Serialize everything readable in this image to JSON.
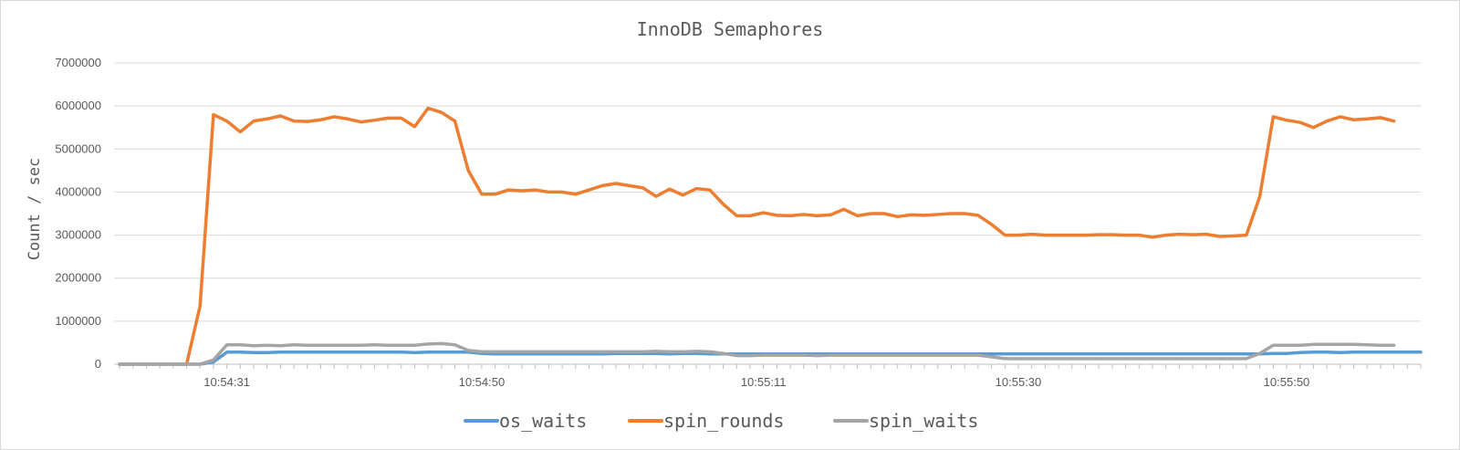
{
  "chart_data": {
    "type": "line",
    "title": "InnoDB Semaphores",
    "ylabel": "Count  / sec",
    "xlabel": "",
    "ylim": [
      0,
      7000000
    ],
    "yticks": [
      "0",
      "1000000",
      "2000000",
      "3000000",
      "4000000",
      "5000000",
      "6000000",
      "7000000"
    ],
    "xtick_labels": [
      {
        "index": 8,
        "label": "10:54:31"
      },
      {
        "index": 27,
        "label": "10:54:50"
      },
      {
        "index": 48,
        "label": "10:55:11"
      },
      {
        "index": 67,
        "label": "10:55:30"
      },
      {
        "index": 87,
        "label": "10:55:50"
      }
    ],
    "grid": true,
    "legend": "bottom",
    "series": [
      {
        "name": "os_waits",
        "color": "#5B9BD5",
        "values": [
          0,
          0,
          0,
          0,
          0,
          0,
          0,
          50000,
          280000,
          280000,
          270000,
          270000,
          280000,
          280000,
          280000,
          280000,
          280000,
          280000,
          280000,
          280000,
          280000,
          280000,
          270000,
          280000,
          280000,
          280000,
          280000,
          250000,
          240000,
          240000,
          240000,
          240000,
          240000,
          240000,
          240000,
          240000,
          240000,
          250000,
          250000,
          250000,
          250000,
          240000,
          250000,
          250000,
          240000,
          240000,
          240000,
          240000,
          240000,
          240000,
          240000,
          240000,
          240000,
          240000,
          240000,
          240000,
          240000,
          240000,
          240000,
          240000,
          240000,
          240000,
          240000,
          240000,
          240000,
          240000,
          240000,
          240000,
          240000,
          240000,
          240000,
          240000,
          240000,
          240000,
          240000,
          240000,
          240000,
          240000,
          240000,
          240000,
          240000,
          240000,
          240000,
          240000,
          240000,
          240000,
          250000,
          250000,
          270000,
          280000,
          280000,
          270000,
          280000,
          280000,
          280000,
          280000,
          280000,
          280000
        ]
      },
      {
        "name": "spin_rounds",
        "color": "#ED7D31",
        "values": [
          0,
          0,
          0,
          0,
          0,
          0,
          1350000,
          5800000,
          5650000,
          5400000,
          5650000,
          5700000,
          5770000,
          5650000,
          5640000,
          5680000,
          5750000,
          5700000,
          5630000,
          5670000,
          5720000,
          5720000,
          5520000,
          5950000,
          5850000,
          5650000,
          4500000,
          3950000,
          3950000,
          4050000,
          4030000,
          4050000,
          4000000,
          4000000,
          3950000,
          4050000,
          4150000,
          4200000,
          4150000,
          4100000,
          3900000,
          4070000,
          3930000,
          4080000,
          4050000,
          3720000,
          3450000,
          3450000,
          3520000,
          3460000,
          3450000,
          3480000,
          3450000,
          3470000,
          3600000,
          3450000,
          3500000,
          3500000,
          3430000,
          3470000,
          3460000,
          3480000,
          3500000,
          3500000,
          3460000,
          3250000,
          3000000,
          3000000,
          3020000,
          3000000,
          3000000,
          3000000,
          3000000,
          3010000,
          3010000,
          3000000,
          3000000,
          2950000,
          3000000,
          3020000,
          3010000,
          3020000,
          2970000,
          2980000,
          3000000,
          3900000,
          5750000,
          5670000,
          5620000,
          5500000,
          5650000,
          5750000,
          5680000,
          5700000,
          5730000,
          5650000
        ]
      },
      {
        "name": "spin_waits",
        "color": "#A5A5A5",
        "values": [
          0,
          0,
          0,
          0,
          0,
          0,
          0,
          100000,
          450000,
          450000,
          430000,
          440000,
          430000,
          450000,
          440000,
          440000,
          440000,
          440000,
          440000,
          450000,
          440000,
          440000,
          440000,
          470000,
          480000,
          450000,
          320000,
          290000,
          290000,
          290000,
          290000,
          290000,
          290000,
          290000,
          290000,
          290000,
          290000,
          290000,
          290000,
          290000,
          300000,
          290000,
          290000,
          300000,
          290000,
          250000,
          200000,
          200000,
          210000,
          210000,
          210000,
          210000,
          200000,
          210000,
          210000,
          210000,
          210000,
          210000,
          210000,
          210000,
          210000,
          210000,
          210000,
          210000,
          210000,
          170000,
          130000,
          130000,
          130000,
          130000,
          130000,
          130000,
          130000,
          130000,
          130000,
          130000,
          130000,
          130000,
          130000,
          130000,
          130000,
          130000,
          130000,
          130000,
          130000,
          250000,
          440000,
          440000,
          440000,
          460000,
          460000,
          460000,
          460000,
          450000,
          440000,
          440000
        ]
      }
    ]
  }
}
